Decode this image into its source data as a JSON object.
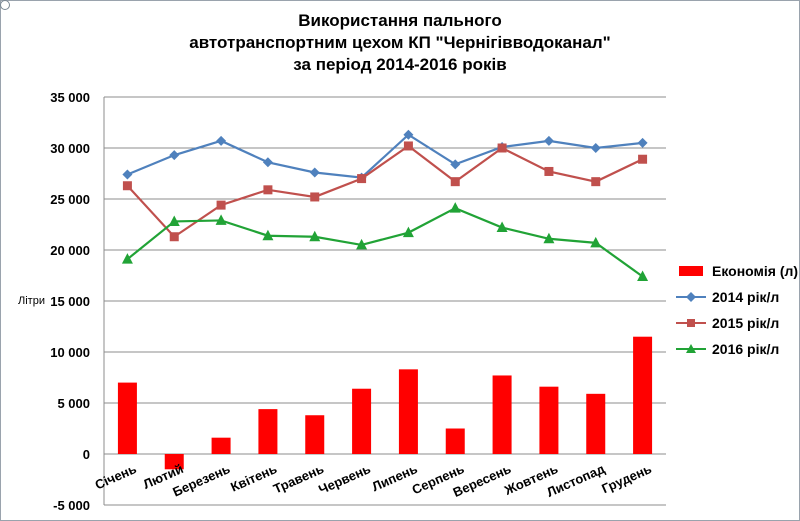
{
  "chart_data": {
    "type": "bar",
    "title": [
      "Використання  пального",
      "автотранспортним  цехом КП \"Чернігівводоканал\"",
      "за період  2014-2016 років"
    ],
    "ylabel": "Літри",
    "xlabel": "",
    "ylim": [
      -5000,
      35000
    ],
    "yticks": [
      -5000,
      0,
      5000,
      10000,
      15000,
      20000,
      25000,
      30000,
      35000
    ],
    "ytick_labels": [
      "-5 000",
      "0",
      "5 000",
      "10 000",
      "15 000",
      "20 000",
      "25 000",
      "30 000",
      "35 000"
    ],
    "grid": true,
    "legend_position": "right",
    "categories": [
      "Січень",
      "Лютий",
      "Березень",
      "Квітень",
      "Травень",
      "Червень",
      "Липень",
      "Серпень",
      "Вересень",
      "Жовтень",
      "Листопад",
      "Грудень"
    ],
    "series": [
      {
        "name": "Економія (л)",
        "type": "bar",
        "color": "#ff0000",
        "values": [
          7000,
          -1500,
          1600,
          4400,
          3800,
          6400,
          8300,
          2500,
          7700,
          6600,
          5900,
          11500
        ]
      },
      {
        "name": "2014 рік/л",
        "type": "line",
        "marker": "diamond",
        "color": "#4f81bd",
        "values": [
          27400,
          29300,
          30700,
          28600,
          27600,
          27100,
          31300,
          28400,
          30100,
          30700,
          30000,
          30500
        ]
      },
      {
        "name": "2015 рік/л",
        "type": "line",
        "marker": "square",
        "color": "#c0504d",
        "values": [
          26300,
          21300,
          24400,
          25900,
          25200,
          27000,
          30200,
          26700,
          30000,
          27700,
          26700,
          28900
        ]
      },
      {
        "name": "2016 рік/л",
        "type": "line",
        "marker": "triangle",
        "color": "#21a336",
        "values": [
          19100,
          22800,
          22900,
          21400,
          21300,
          20500,
          21700,
          24100,
          22200,
          21100,
          20700,
          17400
        ]
      }
    ]
  }
}
